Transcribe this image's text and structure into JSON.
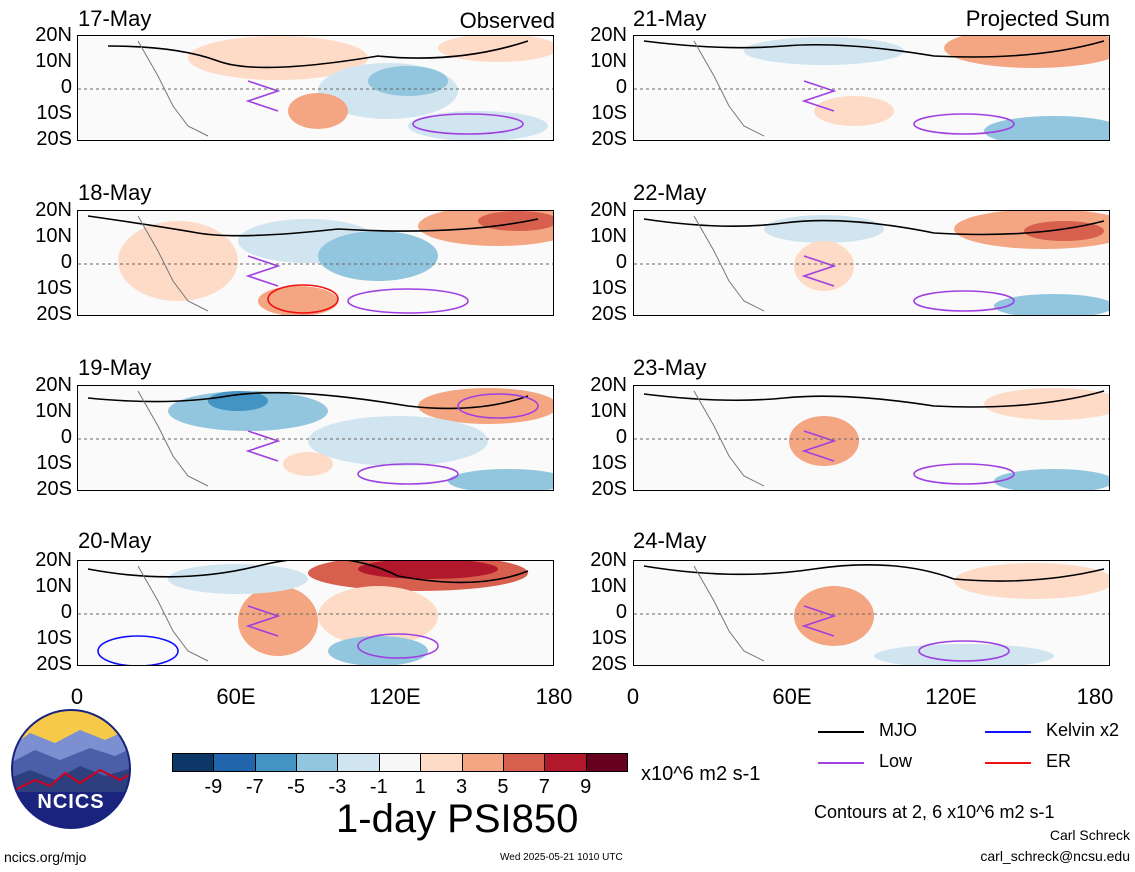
{
  "panels": [
    {
      "date": "17-May",
      "heading": "Observed"
    },
    {
      "date": "18-May",
      "heading": ""
    },
    {
      "date": "19-May",
      "heading": ""
    },
    {
      "date": "20-May",
      "heading": ""
    },
    {
      "date": "21-May",
      "heading": "Projected Sum"
    },
    {
      "date": "22-May",
      "heading": ""
    },
    {
      "date": "23-May",
      "heading": ""
    },
    {
      "date": "24-May",
      "heading": ""
    }
  ],
  "lat_labels": [
    "20N",
    "10N",
    "0",
    "10S",
    "20S"
  ],
  "lon_labels": [
    "0",
    "60E",
    "120E",
    "180"
  ],
  "colorbar": {
    "colors": [
      "#0d3766",
      "#2166ac",
      "#4393c3",
      "#92c5de",
      "#d1e5f0",
      "#f7f7f7",
      "#fddbc7",
      "#f4a582",
      "#d6604d",
      "#b2182b",
      "#67001f"
    ],
    "labels": [
      "-9",
      "-7",
      "-5",
      "-3",
      "-1",
      "1",
      "3",
      "5",
      "7",
      "9"
    ],
    "units": "x10^6 m2 s-1"
  },
  "legend": {
    "items": [
      {
        "label": "MJO",
        "color": "#000000"
      },
      {
        "label": "Kelvin x2",
        "color": "#1010ff"
      },
      {
        "label": "Low",
        "color": "#a040e0"
      },
      {
        "label": "ER",
        "color": "#ee1111"
      }
    ],
    "contour_note": "Contours at 2, 6 x10^6 m2 s-1"
  },
  "title": "1-day PSI850",
  "logo_text": "NCICS",
  "website": "ncics.org/mjo",
  "timestamp": "Wed 2025-05-21 1010 UTC",
  "author": "Carl Schreck",
  "email": "carl_schreck@ncsu.edu"
}
